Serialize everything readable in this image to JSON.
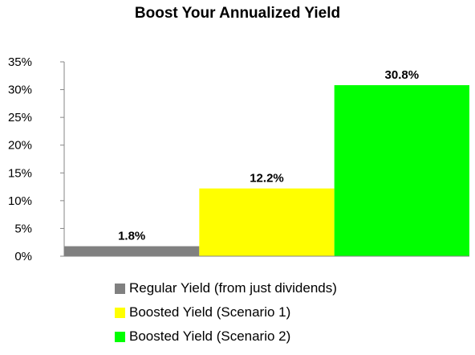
{
  "chart_data": {
    "type": "bar",
    "title": "Boost Your Annualized Yield",
    "xlabel": "",
    "ylabel": "",
    "ylim": [
      0,
      35
    ],
    "yticks": [
      "0%",
      "5%",
      "10%",
      "15%",
      "20%",
      "25%",
      "30%",
      "35%"
    ],
    "ytick_values": [
      0,
      5,
      10,
      15,
      20,
      25,
      30,
      35
    ],
    "grid": false,
    "legend_position": "bottom",
    "series": [
      {
        "name": "Regular Yield (from just dividends)",
        "value": 1.8,
        "label": "1.8%",
        "color": "#808080"
      },
      {
        "name": "Boosted Yield (Scenario 1)",
        "value": 12.2,
        "label": "12.2%",
        "color": "#FFFF00"
      },
      {
        "name": "Boosted Yield (Scenario 2)",
        "value": 30.8,
        "label": "30.8%",
        "color": "#00FF00"
      }
    ]
  }
}
